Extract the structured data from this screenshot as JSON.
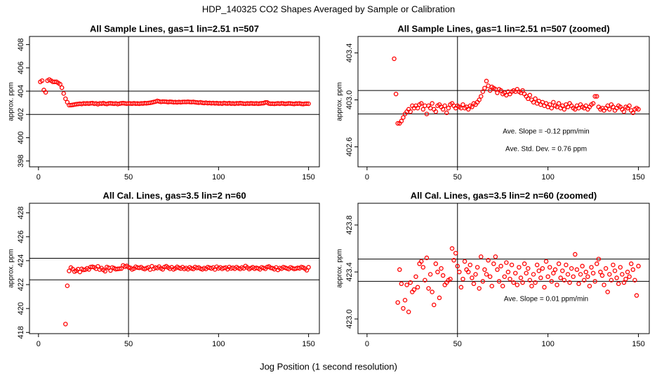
{
  "title": "HDP_140325  CO2 Shapes Averaged by Sample or Calibration",
  "xlabel": "Jog Position (1 second resolution)",
  "chart_data": [
    {
      "type": "scatter",
      "title": "All Sample Lines, gas=1 lin=2.51 n=507",
      "ylabel": "approx. ppm",
      "color": "#ff0000",
      "xlim": [
        -5,
        156
      ],
      "ylim": [
        397.5,
        408.7
      ],
      "xticks": [
        0,
        50,
        100,
        150
      ],
      "yticks": [
        398,
        400,
        402,
        404,
        406,
        408
      ],
      "hlines": [
        402,
        404
      ],
      "vlines": [
        50
      ],
      "x": [
        1,
        2,
        3,
        4,
        5,
        6,
        7,
        8,
        9,
        10,
        11,
        12,
        13,
        14,
        15,
        16,
        17,
        18,
        19,
        20,
        21,
        22,
        23,
        24,
        25,
        26,
        27,
        28,
        29,
        30,
        31,
        32,
        33,
        34,
        35,
        36,
        37,
        38,
        39,
        40,
        41,
        42,
        43,
        44,
        45,
        46,
        47,
        48,
        49,
        50,
        51,
        52,
        53,
        54,
        55,
        56,
        57,
        58,
        59,
        60,
        61,
        62,
        63,
        64,
        65,
        66,
        67,
        68,
        69,
        70,
        71,
        72,
        73,
        74,
        75,
        76,
        77,
        78,
        79,
        80,
        81,
        82,
        83,
        84,
        85,
        86,
        87,
        88,
        89,
        90,
        91,
        92,
        93,
        94,
        95,
        96,
        97,
        98,
        99,
        100,
        101,
        102,
        103,
        104,
        105,
        106,
        107,
        108,
        109,
        110,
        111,
        112,
        113,
        114,
        115,
        116,
        117,
        118,
        119,
        120,
        121,
        122,
        123,
        124,
        125,
        126,
        127,
        128,
        129,
        130,
        131,
        132,
        133,
        134,
        135,
        136,
        137,
        138,
        139,
        140,
        141,
        142,
        143,
        144,
        145,
        146,
        147,
        148,
        149,
        150
      ],
      "values": [
        404.8,
        404.9,
        404.1,
        403.9,
        404.9,
        405.0,
        404.9,
        404.8,
        404.8,
        404.8,
        404.7,
        404.6,
        404.3,
        403.8,
        403.35,
        403.05,
        402.8,
        402.8,
        402.82,
        402.85,
        402.88,
        402.9,
        402.92,
        402.9,
        402.95,
        402.93,
        402.95,
        402.93,
        402.96,
        402.97,
        402.92,
        402.95,
        402.88,
        402.95,
        402.93,
        402.97,
        402.92,
        402.9,
        402.95,
        402.96,
        402.94,
        402.92,
        402.95,
        402.89,
        402.93,
        402.96,
        402.97,
        402.95,
        402.93,
        402.95,
        402.94,
        402.93,
        402.96,
        402.93,
        402.94,
        402.92,
        402.95,
        402.94,
        402.97,
        402.96,
        402.98,
        403.0,
        403.03,
        403.07,
        403.1,
        403.16,
        403.12,
        403.08,
        403.11,
        403.1,
        403.09,
        403.06,
        403.09,
        403.08,
        403.05,
        403.06,
        403.04,
        403.07,
        403.05,
        403.07,
        403.08,
        403.07,
        403.09,
        403.07,
        403.06,
        403.08,
        403.05,
        403.03,
        403.01,
        403.04,
        403.0,
        402.98,
        403.01,
        402.97,
        402.99,
        402.96,
        402.98,
        402.95,
        402.97,
        402.94,
        402.96,
        402.93,
        402.98,
        402.95,
        402.94,
        402.97,
        402.93,
        402.95,
        402.92,
        402.96,
        402.94,
        402.97,
        402.95,
        402.93,
        402.92,
        402.95,
        402.93,
        402.96,
        402.94,
        402.93,
        402.95,
        402.92,
        402.94,
        402.96,
        402.97,
        403.03,
        403.03,
        402.94,
        402.92,
        402.93,
        402.91,
        402.93,
        402.95,
        402.92,
        402.96,
        402.94,
        402.91,
        402.93,
        402.95,
        402.94,
        402.92,
        402.9,
        402.94,
        402.93,
        402.95,
        402.91,
        402.89,
        402.92,
        402.93,
        402.92
      ]
    },
    {
      "type": "scatter",
      "title": "All Sample Lines, gas=1 lin=2.51 n=507 (zoomed)",
      "ylabel": "approx. ppm",
      "color": "#ff0000",
      "xlim": [
        -5,
        156
      ],
      "ylim": [
        402.43,
        403.54
      ],
      "xticks": [
        0,
        50,
        100,
        150
      ],
      "yticks": [
        402.6,
        {
          "value": 403,
          "label": "403.0"
        },
        403.4
      ],
      "hlines": [
        402.88,
        403.08
      ],
      "vlines": [
        50
      ],
      "annotations": [
        "Ave. Slope =  -0.12  ppm/min",
        "Ave. Std. Dev. =  0.76  ppm"
      ],
      "x": [
        15,
        16,
        17,
        18,
        19,
        20,
        21,
        22,
        23,
        24,
        25,
        26,
        27,
        28,
        29,
        30,
        31,
        32,
        33,
        34,
        35,
        36,
        37,
        38,
        39,
        40,
        41,
        42,
        43,
        44,
        45,
        46,
        47,
        48,
        49,
        50,
        51,
        52,
        53,
        54,
        55,
        56,
        57,
        58,
        59,
        60,
        61,
        62,
        63,
        64,
        65,
        66,
        67,
        68,
        69,
        70,
        71,
        72,
        73,
        74,
        75,
        76,
        77,
        78,
        79,
        80,
        81,
        82,
        83,
        84,
        85,
        86,
        87,
        88,
        89,
        90,
        91,
        92,
        93,
        94,
        95,
        96,
        97,
        98,
        99,
        100,
        101,
        102,
        103,
        104,
        105,
        106,
        107,
        108,
        109,
        110,
        111,
        112,
        113,
        114,
        115,
        116,
        117,
        118,
        119,
        120,
        121,
        122,
        123,
        124,
        125,
        126,
        127,
        128,
        129,
        130,
        131,
        132,
        133,
        134,
        135,
        136,
        137,
        138,
        139,
        140,
        141,
        142,
        143,
        144,
        145,
        146,
        147,
        148,
        149,
        150
      ],
      "values": [
        403.35,
        403.05,
        402.8,
        402.8,
        402.82,
        402.85,
        402.88,
        402.9,
        402.92,
        402.9,
        402.95,
        402.93,
        402.95,
        402.93,
        402.96,
        402.97,
        402.92,
        402.95,
        402.88,
        402.95,
        402.93,
        402.97,
        402.92,
        402.9,
        402.95,
        402.96,
        402.94,
        402.92,
        402.95,
        402.89,
        402.93,
        402.96,
        402.97,
        402.95,
        402.93,
        402.95,
        402.94,
        402.93,
        402.96,
        402.93,
        402.94,
        402.92,
        402.95,
        402.94,
        402.97,
        402.96,
        402.98,
        403.0,
        403.03,
        403.07,
        403.1,
        403.16,
        403.12,
        403.08,
        403.11,
        403.1,
        403.09,
        403.06,
        403.09,
        403.08,
        403.05,
        403.06,
        403.04,
        403.07,
        403.05,
        403.07,
        403.08,
        403.07,
        403.09,
        403.07,
        403.06,
        403.08,
        403.05,
        403.03,
        403.01,
        403.04,
        403.0,
        402.98,
        403.01,
        402.97,
        402.99,
        402.96,
        402.98,
        402.95,
        402.97,
        402.94,
        402.96,
        402.93,
        402.98,
        402.95,
        402.94,
        402.97,
        402.93,
        402.95,
        402.92,
        402.96,
        402.94,
        402.97,
        402.95,
        402.93,
        402.92,
        402.95,
        402.93,
        402.96,
        402.94,
        402.93,
        402.95,
        402.92,
        402.94,
        402.96,
        402.97,
        403.03,
        403.03,
        402.94,
        402.92,
        402.93,
        402.91,
        402.93,
        402.95,
        402.92,
        402.96,
        402.94,
        402.91,
        402.93,
        402.95,
        402.94,
        402.92,
        402.9,
        402.94,
        402.93,
        402.95,
        402.91,
        402.89,
        402.92,
        402.93,
        402.92
      ]
    },
    {
      "type": "scatter",
      "title": "All Cal. Lines, gas=3.5 lin=2 n=60",
      "ylabel": "approx. ppm",
      "color": "#ff0000",
      "xlim": [
        -5,
        156
      ],
      "ylim": [
        417.9,
        428.8
      ],
      "xticks": [
        0,
        50,
        100,
        150
      ],
      "yticks": [
        418,
        420,
        422,
        424,
        426,
        428
      ],
      "hlines": [
        422.4,
        424.2
      ],
      "vlines": [
        50
      ],
      "x": [
        15,
        16,
        17,
        18,
        19,
        20,
        21,
        22,
        23,
        24,
        25,
        26,
        27,
        28,
        29,
        30,
        31,
        32,
        33,
        34,
        35,
        36,
        37,
        38,
        39,
        40,
        41,
        42,
        43,
        44,
        45,
        46,
        47,
        48,
        49,
        50,
        51,
        52,
        53,
        54,
        55,
        56,
        57,
        58,
        59,
        60,
        61,
        62,
        63,
        64,
        65,
        66,
        67,
        68,
        69,
        70,
        71,
        72,
        73,
        74,
        75,
        76,
        77,
        78,
        79,
        80,
        81,
        82,
        83,
        84,
        85,
        86,
        87,
        88,
        89,
        90,
        91,
        92,
        93,
        94,
        95,
        96,
        97,
        98,
        99,
        100,
        101,
        102,
        103,
        104,
        105,
        106,
        107,
        108,
        109,
        110,
        111,
        112,
        113,
        114,
        115,
        116,
        117,
        118,
        119,
        120,
        121,
        122,
        123,
        124,
        125,
        126,
        127,
        128,
        129,
        130,
        131,
        132,
        133,
        134,
        135,
        136,
        137,
        138,
        139,
        140,
        141,
        142,
        143,
        144,
        145,
        146,
        147,
        148,
        149,
        150
      ],
      "values": [
        418.7,
        421.9,
        423.14,
        423.42,
        423.3,
        423.09,
        423.16,
        423.29,
        423.06,
        423.31,
        423.23,
        423.25,
        423.36,
        423.27,
        423.47,
        423.49,
        423.44,
        423.33,
        423.52,
        423.26,
        423.38,
        423.23,
        423.12,
        423.47,
        423.4,
        423.18,
        423.43,
        423.37,
        423.29,
        423.31,
        423.33,
        423.34,
        423.6,
        423.5,
        423.56,
        423.45,
        423.4,
        423.27,
        423.34,
        423.49,
        423.42,
        423.4,
        423.46,
        423.35,
        423.3,
        423.38,
        423.44,
        423.26,
        423.53,
        423.32,
        423.42,
        423.38,
        423.5,
        423.36,
        423.28,
        423.47,
        423.53,
        423.42,
        423.32,
        423.45,
        423.28,
        423.36,
        423.48,
        423.4,
        423.34,
        423.46,
        423.31,
        423.39,
        423.29,
        423.44,
        423.35,
        423.31,
        423.47,
        423.39,
        423.43,
        423.33,
        423.28,
        423.38,
        423.31,
        423.46,
        423.41,
        423.35,
        423.43,
        423.27,
        423.49,
        423.36,
        423.44,
        423.32,
        423.39,
        423.42,
        423.29,
        423.47,
        423.35,
        423.41,
        423.33,
        423.46,
        423.38,
        423.31,
        423.43,
        423.36,
        423.55,
        423.42,
        423.3,
        423.38,
        423.45,
        423.33,
        423.4,
        423.36,
        423.28,
        423.44,
        423.39,
        423.32,
        423.47,
        423.51,
        423.4,
        423.37,
        423.29,
        423.43,
        423.23,
        423.38,
        423.33,
        423.46,
        423.41,
        423.35,
        423.3,
        423.44,
        423.38,
        423.31,
        423.34,
        423.4,
        423.36,
        423.47,
        423.42,
        423.33,
        423.2,
        423.45
      ]
    },
    {
      "type": "scatter",
      "title": "All Cal. Lines, gas=3.5 lin=2 n=60 (zoomed)",
      "ylabel": "approx. ppm",
      "color": "#ff0000",
      "xlim": [
        -5,
        156
      ],
      "ylim": [
        422.875,
        423.985
      ],
      "xticks": [
        0,
        50,
        100,
        150
      ],
      "yticks": [
        {
          "value": 423,
          "label": "423.0"
        },
        423.4,
        423.8
      ],
      "hlines": [
        423.32,
        423.51
      ],
      "vlines": [
        50
      ],
      "annotations": [
        "Ave. Slope =  0.01  ppm/min"
      ],
      "x": [
        17,
        18,
        19,
        20,
        21,
        22,
        23,
        24,
        25,
        26,
        27,
        28,
        29,
        30,
        31,
        32,
        33,
        34,
        35,
        36,
        37,
        38,
        39,
        40,
        41,
        42,
        43,
        44,
        45,
        46,
        47,
        48,
        49,
        50,
        51,
        52,
        53,
        54,
        55,
        56,
        57,
        58,
        59,
        60,
        61,
        62,
        63,
        64,
        65,
        66,
        67,
        68,
        69,
        70,
        71,
        72,
        73,
        74,
        75,
        76,
        77,
        78,
        79,
        80,
        81,
        82,
        83,
        84,
        85,
        86,
        87,
        88,
        89,
        90,
        91,
        92,
        93,
        94,
        95,
        96,
        97,
        98,
        99,
        100,
        101,
        102,
        103,
        104,
        105,
        106,
        107,
        108,
        109,
        110,
        111,
        112,
        113,
        114,
        115,
        116,
        117,
        118,
        119,
        120,
        121,
        122,
        123,
        124,
        125,
        126,
        127,
        128,
        129,
        130,
        131,
        132,
        133,
        134,
        135,
        136,
        137,
        138,
        139,
        140,
        141,
        142,
        143,
        144,
        145,
        146,
        147,
        148,
        149,
        150
      ],
      "values": [
        423.14,
        423.42,
        423.3,
        423.09,
        423.16,
        423.29,
        423.06,
        423.31,
        423.23,
        423.25,
        423.36,
        423.27,
        423.47,
        423.49,
        423.44,
        423.33,
        423.52,
        423.26,
        423.38,
        423.23,
        423.12,
        423.47,
        423.4,
        423.18,
        423.43,
        423.37,
        423.29,
        423.31,
        423.33,
        423.34,
        423.6,
        423.5,
        423.56,
        423.45,
        423.4,
        423.27,
        423.34,
        423.49,
        423.42,
        423.4,
        423.46,
        423.35,
        423.3,
        423.38,
        423.44,
        423.26,
        423.53,
        423.32,
        423.42,
        423.38,
        423.5,
        423.36,
        423.28,
        423.47,
        423.53,
        423.42,
        423.32,
        423.45,
        423.28,
        423.36,
        423.48,
        423.4,
        423.34,
        423.46,
        423.31,
        423.39,
        423.29,
        423.44,
        423.35,
        423.31,
        423.47,
        423.39,
        423.43,
        423.33,
        423.28,
        423.38,
        423.31,
        423.46,
        423.41,
        423.35,
        423.43,
        423.27,
        423.49,
        423.36,
        423.44,
        423.32,
        423.39,
        423.42,
        423.29,
        423.47,
        423.35,
        423.41,
        423.33,
        423.46,
        423.38,
        423.31,
        423.43,
        423.36,
        423.55,
        423.42,
        423.3,
        423.38,
        423.45,
        423.33,
        423.4,
        423.36,
        423.28,
        423.44,
        423.39,
        423.32,
        423.47,
        423.51,
        423.4,
        423.37,
        423.29,
        423.43,
        423.23,
        423.38,
        423.33,
        423.46,
        423.41,
        423.35,
        423.3,
        423.44,
        423.38,
        423.31,
        423.34,
        423.4,
        423.36,
        423.47,
        423.42,
        423.33,
        423.2,
        423.45
      ]
    }
  ]
}
